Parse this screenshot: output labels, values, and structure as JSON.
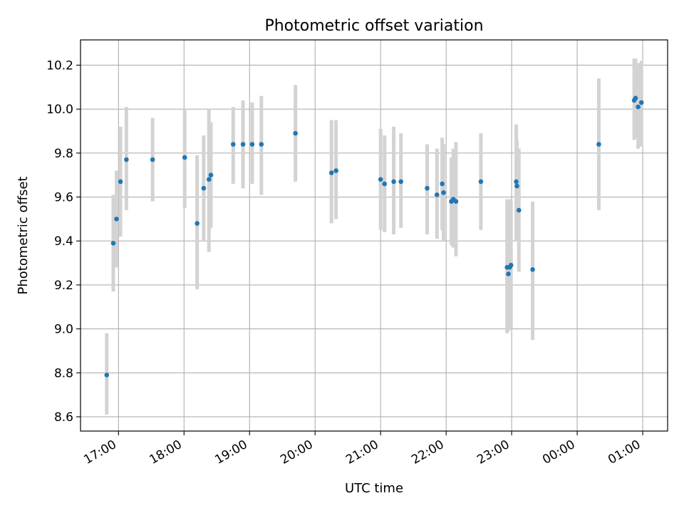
{
  "chart_data": {
    "type": "scatter",
    "title": "Photometric offset variation",
    "xlabel": "UTC time",
    "ylabel": "Photometric offset",
    "x_unit": "hours since 17:00 UTC (axis spans into next day)",
    "xlim": [
      -0.58,
      8.38
    ],
    "ylim": [
      8.535,
      10.315
    ],
    "x_ticks": [
      {
        "value": 0,
        "label": "17:00"
      },
      {
        "value": 1,
        "label": "18:00"
      },
      {
        "value": 2,
        "label": "19:00"
      },
      {
        "value": 3,
        "label": "20:00"
      },
      {
        "value": 4,
        "label": "21:00"
      },
      {
        "value": 5,
        "label": "22:00"
      },
      {
        "value": 6,
        "label": "23:00"
      },
      {
        "value": 7,
        "label": "00:00"
      },
      {
        "value": 8,
        "label": "01:00"
      }
    ],
    "y_ticks": [
      {
        "value": 8.6,
        "label": "8.6"
      },
      {
        "value": 8.8,
        "label": "8.8"
      },
      {
        "value": 9.0,
        "label": "9.0"
      },
      {
        "value": 9.2,
        "label": "9.2"
      },
      {
        "value": 9.4,
        "label": "9.4"
      },
      {
        "value": 9.6,
        "label": "9.6"
      },
      {
        "value": 9.8,
        "label": "9.8"
      },
      {
        "value": 10.0,
        "label": "10.0"
      },
      {
        "value": 10.2,
        "label": "10.2"
      }
    ],
    "grid": true,
    "colors": {
      "point": "#1f77b4",
      "errorbar": "#d3d3d3",
      "grid": "#b0b0b0"
    },
    "series": [
      {
        "points": [
          {
            "x": -0.18,
            "y": 8.79,
            "lo": 8.61,
            "hi": 8.98
          },
          {
            "x": -0.08,
            "y": 9.39,
            "lo": 9.17,
            "hi": 9.61
          },
          {
            "x": -0.03,
            "y": 9.5,
            "lo": 9.28,
            "hi": 9.72
          },
          {
            "x": 0.03,
            "y": 9.67,
            "lo": 9.42,
            "hi": 9.92
          },
          {
            "x": 0.12,
            "y": 9.77,
            "lo": 9.54,
            "hi": 10.01
          },
          {
            "x": 0.52,
            "y": 9.77,
            "lo": 9.58,
            "hi": 9.96
          },
          {
            "x": 1.01,
            "y": 9.78,
            "lo": 9.55,
            "hi": 10.0
          },
          {
            "x": 1.2,
            "y": 9.48,
            "lo": 9.18,
            "hi": 9.79
          },
          {
            "x": 1.3,
            "y": 9.64,
            "lo": 9.4,
            "hi": 9.88
          },
          {
            "x": 1.38,
            "y": 9.68,
            "lo": 9.35,
            "hi": 10.0
          },
          {
            "x": 1.41,
            "y": 9.7,
            "lo": 9.46,
            "hi": 9.94
          },
          {
            "x": 1.75,
            "y": 9.84,
            "lo": 9.66,
            "hi": 10.01
          },
          {
            "x": 1.9,
            "y": 9.84,
            "lo": 9.64,
            "hi": 10.04
          },
          {
            "x": 2.04,
            "y": 9.84,
            "lo": 9.66,
            "hi": 10.03
          },
          {
            "x": 2.18,
            "y": 9.84,
            "lo": 9.61,
            "hi": 10.06
          },
          {
            "x": 2.7,
            "y": 9.89,
            "lo": 9.67,
            "hi": 10.11
          },
          {
            "x": 3.25,
            "y": 9.71,
            "lo": 9.48,
            "hi": 9.95
          },
          {
            "x": 3.32,
            "y": 9.72,
            "lo": 9.5,
            "hi": 9.95
          },
          {
            "x": 4.0,
            "y": 9.68,
            "lo": 9.45,
            "hi": 9.91
          },
          {
            "x": 4.06,
            "y": 9.66,
            "lo": 9.44,
            "hi": 9.88
          },
          {
            "x": 4.2,
            "y": 9.67,
            "lo": 9.43,
            "hi": 9.92
          },
          {
            "x": 4.31,
            "y": 9.67,
            "lo": 9.46,
            "hi": 9.89
          },
          {
            "x": 4.71,
            "y": 9.64,
            "lo": 9.43,
            "hi": 9.84
          },
          {
            "x": 4.86,
            "y": 9.61,
            "lo": 9.41,
            "hi": 9.82
          },
          {
            "x": 4.94,
            "y": 9.66,
            "lo": 9.45,
            "hi": 9.87
          },
          {
            "x": 4.96,
            "y": 9.62,
            "lo": 9.4,
            "hi": 9.84
          },
          {
            "x": 5.08,
            "y": 9.58,
            "lo": 9.38,
            "hi": 9.78
          },
          {
            "x": 5.11,
            "y": 9.59,
            "lo": 9.37,
            "hi": 9.82
          },
          {
            "x": 5.15,
            "y": 9.58,
            "lo": 9.33,
            "hi": 9.85
          },
          {
            "x": 5.53,
            "y": 9.67,
            "lo": 9.45,
            "hi": 9.89
          },
          {
            "x": 5.93,
            "y": 9.28,
            "lo": 8.98,
            "hi": 9.59
          },
          {
            "x": 5.95,
            "y": 9.25,
            "lo": 8.99,
            "hi": 9.58
          },
          {
            "x": 5.97,
            "y": 9.28,
            "lo": 9.01,
            "hi": 9.59
          },
          {
            "x": 5.99,
            "y": 9.29,
            "lo": 9.0,
            "hi": 9.58
          },
          {
            "x": 6.07,
            "y": 9.67,
            "lo": 9.4,
            "hi": 9.93
          },
          {
            "x": 6.08,
            "y": 9.65,
            "lo": 9.42,
            "hi": 9.86
          },
          {
            "x": 6.11,
            "y": 9.54,
            "lo": 9.26,
            "hi": 9.82
          },
          {
            "x": 6.32,
            "y": 9.27,
            "lo": 8.95,
            "hi": 9.58
          },
          {
            "x": 7.33,
            "y": 9.84,
            "lo": 9.54,
            "hi": 10.14
          },
          {
            "x": 7.87,
            "y": 10.04,
            "lo": 9.86,
            "hi": 10.23
          },
          {
            "x": 7.89,
            "y": 10.05,
            "lo": 9.87,
            "hi": 10.23
          },
          {
            "x": 7.93,
            "y": 10.01,
            "lo": 9.82,
            "hi": 10.21
          },
          {
            "x": 7.98,
            "y": 10.03,
            "lo": 9.83,
            "hi": 10.22
          }
        ]
      }
    ]
  }
}
